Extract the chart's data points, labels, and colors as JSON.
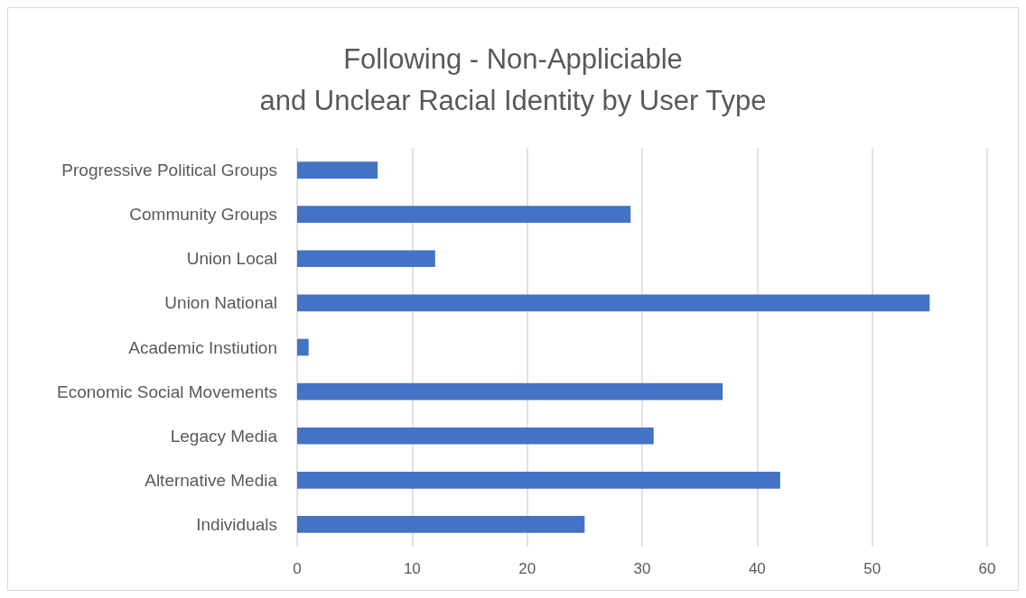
{
  "chart_data": {
    "type": "bar",
    "orientation": "horizontal",
    "title": "Following - Non-Appliciable\nand Unclear Racial Identity by User Type",
    "categories": [
      "Progressive Political Groups",
      "Community Groups",
      "Union Local",
      "Union National",
      "Academic Instiution",
      "Economic Social Movements",
      "Legacy Media",
      "Alternative Media",
      "Individuals"
    ],
    "values": [
      7,
      29,
      12,
      55,
      1,
      37,
      31,
      42,
      25
    ],
    "color": "#4472c4",
    "xlim": [
      0,
      60
    ],
    "xticks": [
      0,
      10,
      20,
      30,
      40,
      50,
      60
    ],
    "grid": "x",
    "legend": false
  }
}
